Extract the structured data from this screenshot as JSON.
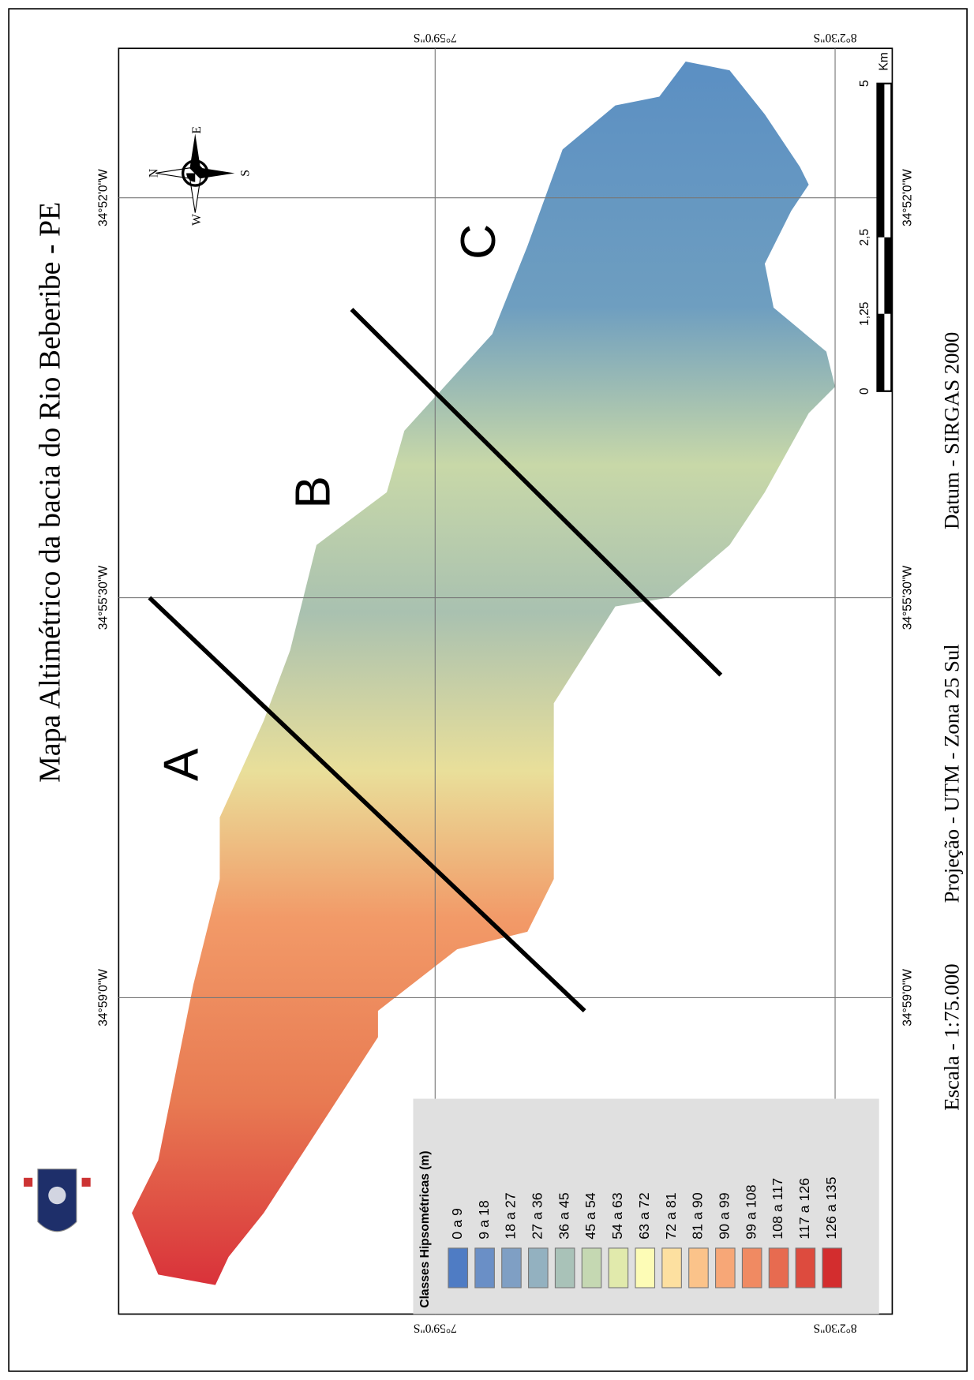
{
  "map": {
    "title": "Mapa Altimétrico da bacia do Rio Beberibe - PE",
    "footer": [
      "Escala - 1:75.000",
      "Projeção - UTM - Zona 25 Sul",
      "Datum - SIRGAS 2000"
    ],
    "latitude_labels": [
      "7°59'0\"S",
      "8°2'30\"S"
    ],
    "longitude_labels": [
      "34°52'0\"W",
      "34°55'30\"W",
      "34°59'0\"W"
    ],
    "zones": [
      "A",
      "B",
      "C"
    ],
    "compass": {
      "north": "N",
      "east": "E",
      "south": "S",
      "west": "W"
    },
    "scale_bar": {
      "labels": [
        "0",
        "1,25",
        "2,5",
        "5"
      ],
      "unit": "Km"
    },
    "legend": {
      "title": "Classes Hipsométricas (m)",
      "items": [
        {
          "label": "0 a 9",
          "color": "#4f7cc4"
        },
        {
          "label": "9 a 18",
          "color": "#6a8fc6"
        },
        {
          "label": "18 a 27",
          "color": "#7f9fc4"
        },
        {
          "label": "27 a 36",
          "color": "#93b1c0"
        },
        {
          "label": "36 a 45",
          "color": "#a9c2b8"
        },
        {
          "label": "45 a 54",
          "color": "#c5d8b2"
        },
        {
          "label": "54 a 63",
          "color": "#e1eaac"
        },
        {
          "label": "63 a 72",
          "color": "#fdfcb6"
        },
        {
          "label": "72 a 81",
          "color": "#fde0a0"
        },
        {
          "label": "81 a 90",
          "color": "#fbc38a"
        },
        {
          "label": "90 a 99",
          "color": "#f7a777"
        },
        {
          "label": "99 a 108",
          "color": "#f08a62"
        },
        {
          "label": "108 a 117",
          "color": "#e76b50"
        },
        {
          "label": "117 a 126",
          "color": "#dd4b3e"
        },
        {
          "label": "126 a 135",
          "color": "#d32d2e"
        }
      ]
    }
  }
}
